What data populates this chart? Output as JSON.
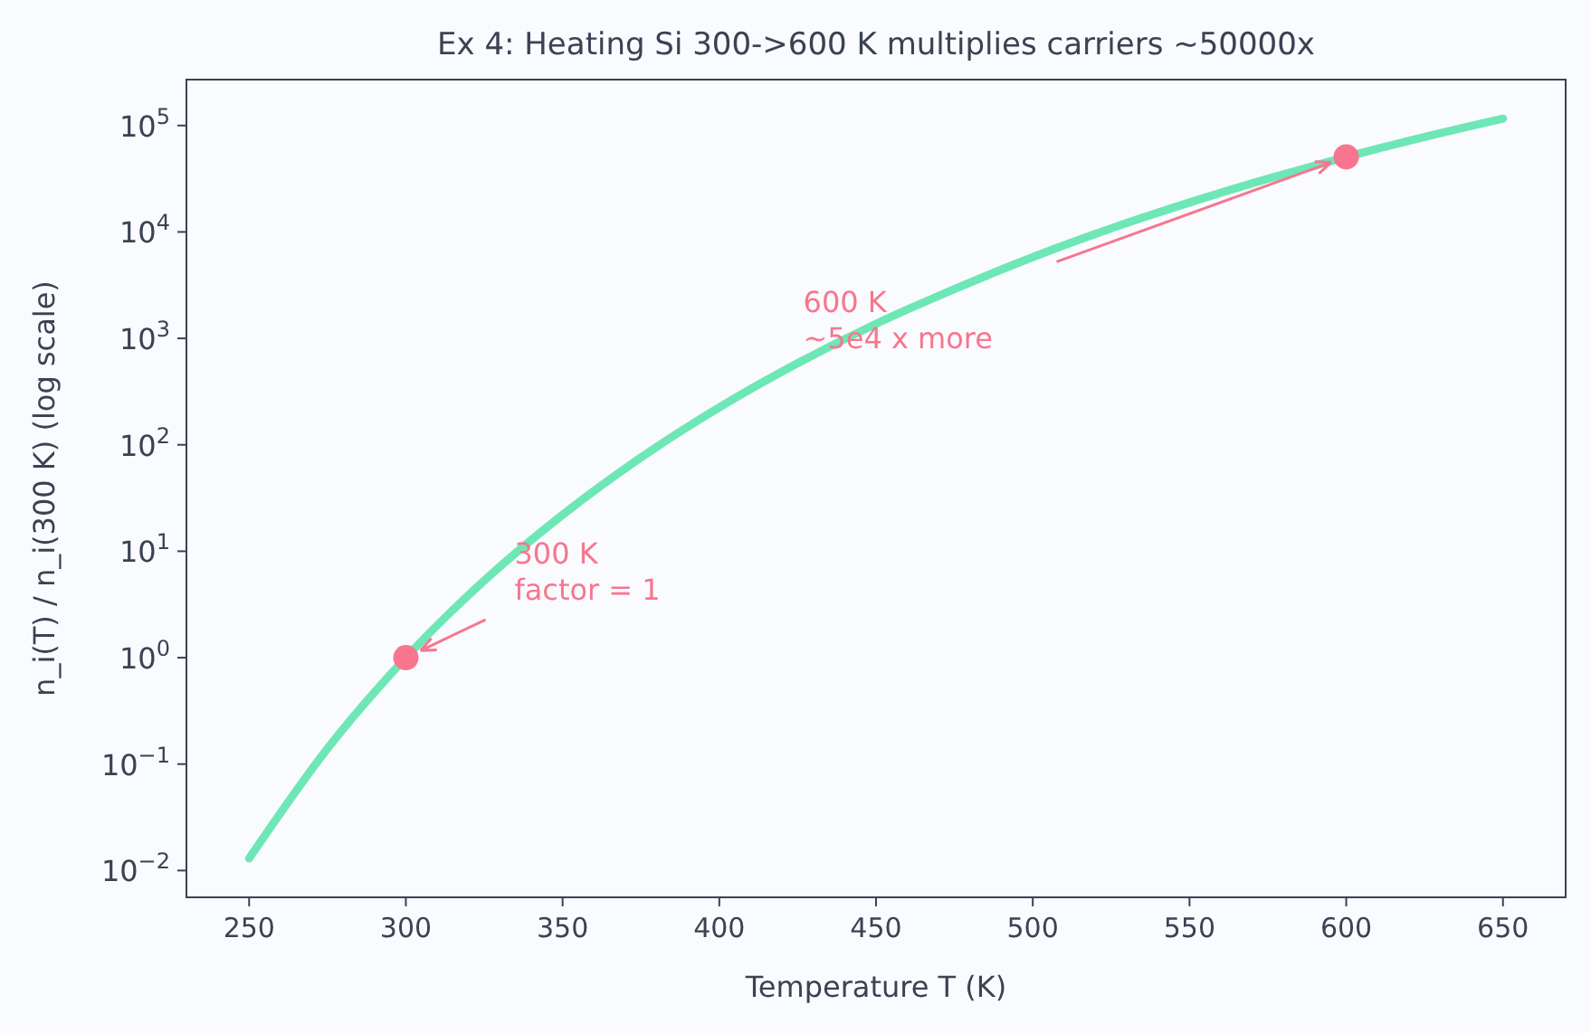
{
  "chart_data": {
    "type": "line",
    "title": "Ex 4: Heating Si 300->600 K multiplies carriers ~50000x",
    "xlabel": "Temperature T  (K)",
    "ylabel": "n_i(T) / n_i(300 K)   (log scale)",
    "log": "y",
    "grid": false,
    "xlim": [
      230,
      670
    ],
    "xticks": [
      250,
      300,
      350,
      400,
      450,
      500,
      550,
      600,
      650
    ],
    "ylim": [
      0.0056,
      270000
    ],
    "yticks": [
      {
        "value": 0.01,
        "label": "10$^{−2}$"
      },
      {
        "value": 0.1,
        "label": "10$^{−1}$"
      },
      {
        "value": 1,
        "label": "10$^{0}$"
      },
      {
        "value": 10,
        "label": "10$^{1}$"
      },
      {
        "value": 100,
        "label": "10$^{2}$"
      },
      {
        "value": 1000,
        "label": "10$^{3}$"
      },
      {
        "value": 10000,
        "label": "10$^{4}$"
      },
      {
        "value": 100000,
        "label": "10$^{5}$"
      }
    ],
    "series": [
      {
        "color": "#6ee7b7",
        "x": [
          250,
          275,
          300,
          325,
          350,
          375,
          400,
          425,
          450,
          475,
          500,
          525,
          550,
          575,
          590,
          610,
          625,
          650
        ],
        "values": [
          0.013,
          0.14,
          1,
          5.3,
          22,
          76,
          225,
          585,
          1370,
          2900,
          5800,
          10800,
          18900,
          31600,
          42000,
          60500,
          78000,
          116000
        ]
      },
      {
        "type": "scatter",
        "color": "#f7768e",
        "marker": "circle",
        "x": [
          300,
          600
        ],
        "values": [
          1,
          50700
        ]
      }
    ],
    "annotations": [
      "300 K\nfactor = 1",
      "600 K\n~5e4 x more"
    ]
  }
}
